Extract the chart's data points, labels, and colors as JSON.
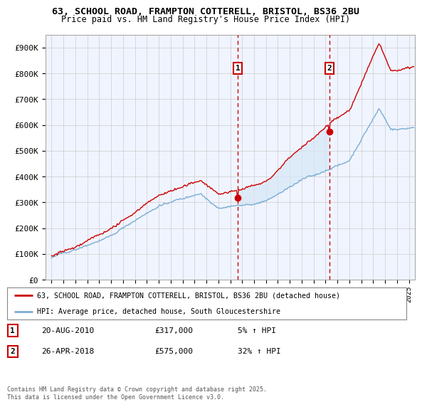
{
  "title1": "63, SCHOOL ROAD, FRAMPTON COTTERELL, BRISTOL, BS36 2BU",
  "title2": "Price paid vs. HM Land Registry's House Price Index (HPI)",
  "ylabel_ticks": [
    "£0",
    "£100K",
    "£200K",
    "£300K",
    "£400K",
    "£500K",
    "£600K",
    "£700K",
    "£800K",
    "£900K"
  ],
  "ylabel_values": [
    0,
    100000,
    200000,
    300000,
    400000,
    500000,
    600000,
    700000,
    800000,
    900000
  ],
  "ylim": [
    0,
    950000
  ],
  "xlim_start": 1994.5,
  "xlim_end": 2025.5,
  "background_color": "#ffffff",
  "plot_bg_color": "#f0f4ff",
  "grid_color": "#cccccc",
  "shade_color": "#d6e8f7",
  "line1_color": "#cc0000",
  "line2_color": "#7aadd4",
  "sale1_x": 2010.64,
  "sale1_y": 317000,
  "sale2_x": 2018.32,
  "sale2_y": 575000,
  "legend_line1": "63, SCHOOL ROAD, FRAMPTON COTTERELL, BRISTOL, BS36 2BU (detached house)",
  "legend_line2": "HPI: Average price, detached house, South Gloucestershire",
  "annotation1_num": "1",
  "annotation1_date": "20-AUG-2010",
  "annotation1_price": "£317,000",
  "annotation1_hpi": "5% ↑ HPI",
  "annotation2_num": "2",
  "annotation2_date": "26-APR-2018",
  "annotation2_price": "£575,000",
  "annotation2_hpi": "32% ↑ HPI",
  "footer": "Contains HM Land Registry data © Crown copyright and database right 2025.\nThis data is licensed under the Open Government Licence v3.0."
}
